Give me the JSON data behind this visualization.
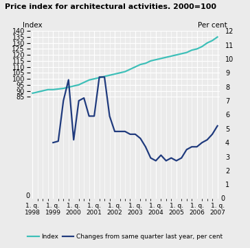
{
  "title": "Price index for architectural activities. 2000=100",
  "left_ylabel": "Index",
  "right_ylabel": "Per cent",
  "left_ylim": [
    0,
    140
  ],
  "right_ylim": [
    0,
    12
  ],
  "left_yticks": [
    85,
    90,
    95,
    100,
    105,
    110,
    115,
    120,
    125,
    130,
    135,
    140
  ],
  "right_yticks": [
    1,
    2,
    3,
    4,
    5,
    6,
    7,
    8,
    9,
    10,
    11,
    12
  ],
  "x_labels": [
    "1. q.\n1998",
    "1. q.\n1999",
    "1. q.\n2000",
    "1. q.\n2001",
    "1. q.\n2002",
    "1. q.\n2003",
    "1. q.\n2004",
    "1. q.\n2005",
    "1. q.\n2006",
    "1. q.\n2007"
  ],
  "index_color": "#3dbfb8",
  "changes_color": "#1f3a7d",
  "background_color": "#ebebeb",
  "grid_color": "#ffffff",
  "index_data": {
    "x": [
      0,
      1,
      2,
      3,
      4,
      5,
      6,
      7,
      8,
      9,
      10,
      11,
      12,
      13,
      14,
      15,
      16,
      17,
      18,
      19,
      20,
      21,
      22,
      23,
      24,
      25,
      26,
      27,
      28,
      29,
      30,
      31,
      32,
      33,
      34,
      35,
      36
    ],
    "y": [
      88,
      89,
      90,
      91,
      91,
      91.5,
      92,
      93,
      94,
      95,
      97,
      99,
      100,
      101,
      102,
      103,
      104,
      105,
      106,
      108,
      110,
      112,
      113,
      115,
      116,
      117,
      118,
      119,
      120,
      121,
      122,
      124,
      125,
      127,
      130,
      132,
      135
    ]
  },
  "changes_data_pct": {
    "x": [
      4,
      5,
      6,
      7,
      8,
      9,
      10,
      11,
      12,
      13,
      14,
      15,
      16,
      17,
      18,
      19,
      20,
      21,
      22,
      23,
      24,
      25,
      26,
      27,
      28,
      29,
      30,
      31,
      32,
      33,
      34,
      35,
      36
    ],
    "y": [
      4.0,
      4.1,
      7.0,
      8.5,
      4.2,
      7.0,
      7.2,
      5.9,
      5.9,
      8.7,
      8.7,
      5.9,
      4.8,
      4.8,
      4.8,
      4.6,
      4.6,
      4.3,
      3.7,
      2.9,
      2.7,
      3.1,
      2.7,
      2.9,
      2.7,
      2.9,
      3.5,
      3.7,
      3.7,
      4.0,
      4.2,
      4.6,
      5.2
    ]
  },
  "legend_labels": [
    "Index",
    "Changes from same quarter last year, per cent"
  ]
}
